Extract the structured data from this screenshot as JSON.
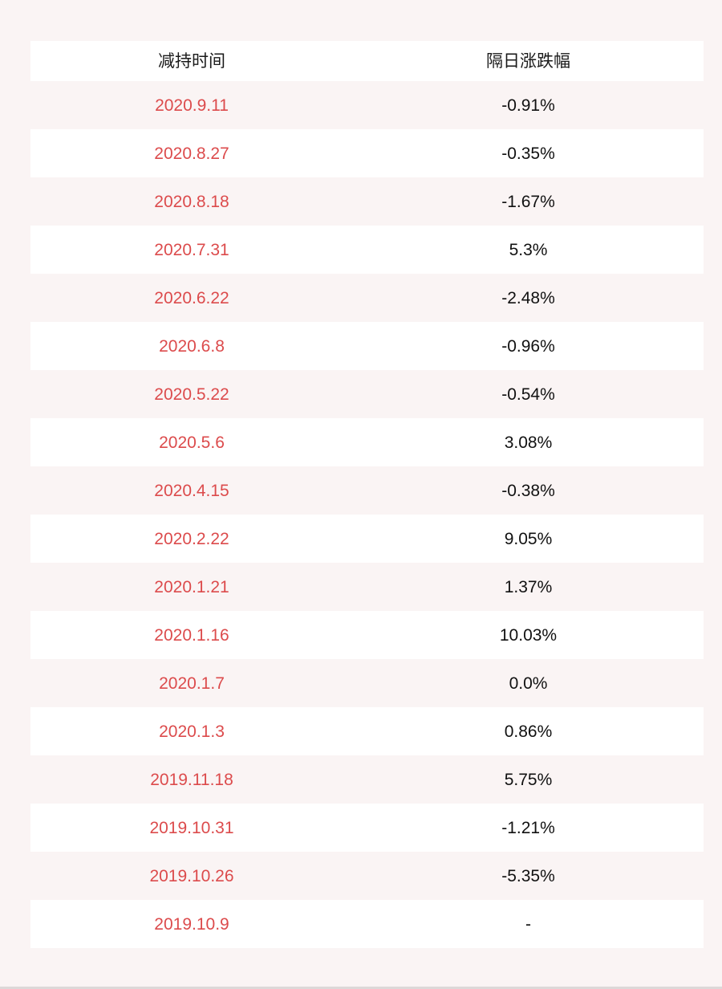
{
  "chart_data": {
    "type": "table",
    "columns": [
      "减持时间",
      "隔日涨跌幅"
    ],
    "rows": [
      [
        "2020.9.11",
        "-0.91%"
      ],
      [
        "2020.8.27",
        "-0.35%"
      ],
      [
        "2020.8.18",
        "-1.67%"
      ],
      [
        "2020.7.31",
        "5.3%"
      ],
      [
        "2020.6.22",
        "-2.48%"
      ],
      [
        "2020.6.8",
        "-0.96%"
      ],
      [
        "2020.5.22",
        "-0.54%"
      ],
      [
        "2020.5.6",
        "3.08%"
      ],
      [
        "2020.4.15",
        "-0.38%"
      ],
      [
        "2020.2.22",
        "9.05%"
      ],
      [
        "2020.1.21",
        "1.37%"
      ],
      [
        "2020.1.16",
        "10.03%"
      ],
      [
        "2020.1.7",
        "0.0%"
      ],
      [
        "2020.1.3",
        "0.86%"
      ],
      [
        "2019.11.18",
        "5.75%"
      ],
      [
        "2019.10.31",
        "-1.21%"
      ],
      [
        "2019.10.26",
        "-5.35%"
      ],
      [
        "2019.10.9",
        "-"
      ]
    ],
    "title": "",
    "legend_position": "none",
    "layout_hints": {
      "row_striping": "alternating, first data row tinted, header white",
      "text_alignment": "center"
    }
  },
  "theme": {
    "page_bg": "#faf4f4",
    "row_bg": "#ffffff",
    "row_alt_bg": "#faf4f4",
    "date_color": "#dc4b4c",
    "value_color": "#111111",
    "header_color": "#1a1a1a",
    "bottom_strip_color": "#ddd8d8"
  }
}
